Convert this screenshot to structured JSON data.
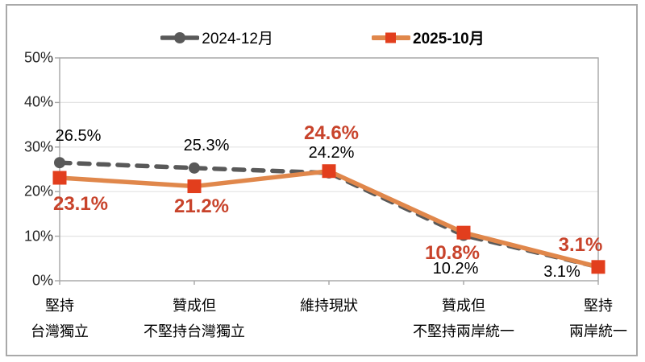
{
  "chart_data": {
    "type": "line",
    "title": "",
    "categories": [
      [
        "堅持",
        "台灣獨立"
      ],
      [
        "贊成但",
        "不堅持台灣獨立"
      ],
      [
        "維持現狀"
      ],
      [
        "贊成但",
        "不堅持兩岸統一"
      ],
      [
        "堅持",
        "兩岸統一"
      ]
    ],
    "series": [
      {
        "name": "2024-12月",
        "values": [
          26.5,
          25.3,
          24.2,
          10.2,
          3.1
        ],
        "line_color": "#595959",
        "line_style": "dashed",
        "marker": "circle",
        "marker_color": "#595959",
        "label_color": "#000000",
        "label_bold": false,
        "label_size": 20,
        "label_offsets": [
          [
            23,
            -33
          ],
          [
            15,
            -28
          ],
          [
            3,
            -25
          ],
          [
            -10,
            42
          ],
          [
            -45,
            6
          ]
        ]
      },
      {
        "name": "2025-10月",
        "values": [
          23.1,
          21.2,
          24.6,
          10.8,
          3.1
        ],
        "line_color": "#E0874B",
        "line_style": "solid",
        "marker": "square",
        "marker_color": "#E23E1D",
        "label_color": "#C8432B",
        "label_bold": true,
        "label_size": 24,
        "label_offsets": [
          [
            26,
            33
          ],
          [
            9,
            25
          ],
          [
            3,
            -47
          ],
          [
            -14,
            26
          ],
          [
            -22,
            -27
          ]
        ]
      }
    ],
    "ylim": [
      0,
      50
    ],
    "ytick_step": 10,
    "ytick_labels": [
      "0%",
      "10%",
      "20%",
      "30%",
      "40%",
      "50%"
    ],
    "value_suffix": "%",
    "grid": true,
    "legend_position": "top",
    "colors": {
      "grid": "#E3E3E3",
      "axis": "#A6A6A6",
      "frame": "#A9A9A9",
      "background": "#FFFFFF"
    }
  }
}
